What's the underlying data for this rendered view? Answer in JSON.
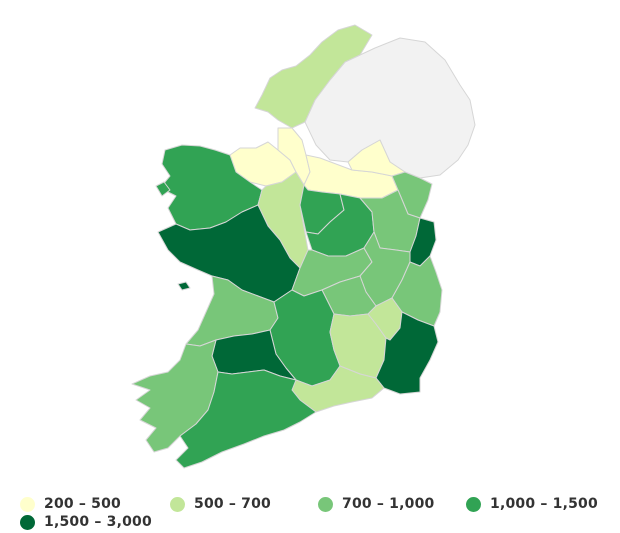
{
  "map": {
    "no_data_color": "#f2f2f2",
    "legend": {
      "placement": "bottom",
      "items": [
        {
          "label": "200 – 500",
          "color": "#ffffcc"
        },
        {
          "label": "500 – 700",
          "color": "#c2e699"
        },
        {
          "label": "700 – 1,000",
          "color": "#78c679"
        },
        {
          "label": "1,000 – 1,500",
          "color": "#31a354"
        },
        {
          "label": "1,500 – 3,000",
          "color": "#006837"
        }
      ]
    },
    "regions": [
      {
        "name": "Northern Ireland",
        "class": "no-data"
      },
      {
        "name": "Donegal",
        "class": "500 – 700"
      },
      {
        "name": "Sligo",
        "class": "200 – 500"
      },
      {
        "name": "Leitrim",
        "class": "200 – 500"
      },
      {
        "name": "Cavan",
        "class": "200 – 500"
      },
      {
        "name": "Monaghan",
        "class": "200 – 500"
      },
      {
        "name": "Mayo",
        "class": "1,000 – 1,500"
      },
      {
        "name": "Galway",
        "class": "1,500 – 3,000"
      },
      {
        "name": "Roscommon",
        "class": "500 – 700"
      },
      {
        "name": "Longford",
        "class": "1,000 – 1,500"
      },
      {
        "name": "Westmeath",
        "class": "1,000 – 1,500"
      },
      {
        "name": "Meath",
        "class": "700 – 1,000"
      },
      {
        "name": "Louth",
        "class": "700 – 1,000"
      },
      {
        "name": "Dublin",
        "class": "1,500 – 3,000"
      },
      {
        "name": "Offaly",
        "class": "700 – 1,000"
      },
      {
        "name": "Kildare",
        "class": "700 – 1,000"
      },
      {
        "name": "Wicklow",
        "class": "700 – 1,000"
      },
      {
        "name": "Laois",
        "class": "700 – 1,000"
      },
      {
        "name": "Clare",
        "class": "700 – 1,000"
      },
      {
        "name": "Tipperary",
        "class": "1,000 – 1,500"
      },
      {
        "name": "Kilkenny",
        "class": "500 – 700"
      },
      {
        "name": "Carlow",
        "class": "500 – 700"
      },
      {
        "name": "Wexford",
        "class": "1,500 – 3,000"
      },
      {
        "name": "Limerick",
        "class": "1,500 – 3,000"
      },
      {
        "name": "Kerry",
        "class": "700 – 1,000"
      },
      {
        "name": "Cork",
        "class": "1,000 – 1,500"
      },
      {
        "name": "Waterford",
        "class": "500 – 700"
      }
    ]
  }
}
